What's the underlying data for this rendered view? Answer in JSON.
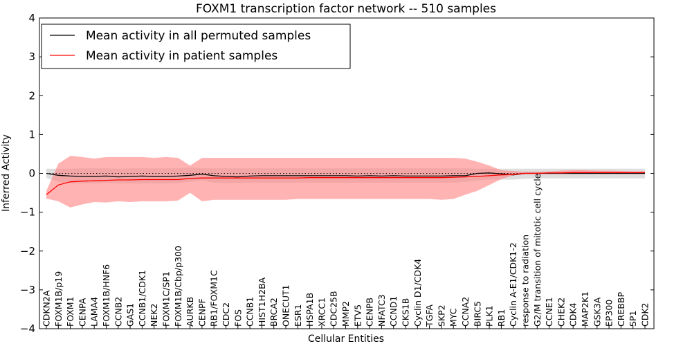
{
  "chart_data": {
    "type": "line",
    "title": "FOXM1 transcription factor network -- 510 samples",
    "xlabel": "Cellular Entities",
    "ylabel": "Inferred Activity",
    "ylim": [
      -4,
      4
    ],
    "yticks": [
      4,
      3,
      2,
      1,
      0,
      -1,
      -2,
      -3,
      -4
    ],
    "ytick_labels": [
      "4",
      "3",
      "2",
      "1",
      "0",
      "−1",
      "−2",
      "−3",
      "−4"
    ],
    "grid": false,
    "legend": "top-left",
    "categories": [
      "CDKN2A",
      "FOXM1B/p19",
      "FOXM1",
      "CENPA",
      "LAMA4",
      "FOXM1B/HNF6",
      "CCNB2",
      "GAS1",
      "CCNB1/CDK1",
      "NEK2",
      "FOXM1C/SP1",
      "FOXM1B/Cbp/p300",
      "AURKB",
      "CENPF",
      "RB1/FOXM1C",
      "CDC2",
      "FOS",
      "CCNB1",
      "HIST1H2BA",
      "BRCA2",
      "ONECUT1",
      "ESR1",
      "HSPA1B",
      "XRCC1",
      "CDC25B",
      "MMP2",
      "ETV5",
      "CENPB",
      "NFATC3",
      "CCND1",
      "CKS1B",
      "Cyclin D1/CDK4",
      "TGFA",
      "SKP2",
      "MYC",
      "CCNA2",
      "BIRC5",
      "PLK1",
      "RB1",
      "Cyclin A-E1/CDK1-2",
      "response to radiation",
      "G2/M transition of mitotic cell cycle",
      "CCNE1",
      "CHEK2",
      "CDK4",
      "MAP2K1",
      "GSK3A",
      "EP300",
      "CREBBP",
      "SP1",
      "CDK2"
    ],
    "reference_line": 0,
    "series": [
      {
        "name": "Mean activity in all permuted samples",
        "color": "#000000",
        "band_color": "#c8c8c8",
        "values": [
          0.0,
          -0.05,
          -0.07,
          -0.08,
          -0.08,
          -0.07,
          -0.09,
          -0.08,
          -0.07,
          -0.08,
          -0.08,
          -0.07,
          -0.05,
          -0.02,
          -0.06,
          -0.08,
          -0.09,
          -0.07,
          -0.06,
          -0.06,
          -0.06,
          -0.06,
          -0.06,
          -0.06,
          -0.06,
          -0.06,
          -0.07,
          -0.06,
          -0.07,
          -0.06,
          -0.07,
          -0.07,
          -0.07,
          -0.07,
          -0.06,
          -0.06,
          0.0,
          0.01,
          -0.01,
          -0.04,
          0.0,
          0.0,
          0.0,
          0.0,
          0.0,
          0.0,
          0.0,
          0.0,
          0.0,
          0.0,
          0.0
        ],
        "upper": [
          0.12,
          0.12,
          0.12,
          0.13,
          0.13,
          0.13,
          0.12,
          0.13,
          0.13,
          0.13,
          0.13,
          0.13,
          0.15,
          0.13,
          0.13,
          0.13,
          0.13,
          0.13,
          0.13,
          0.13,
          0.13,
          0.13,
          0.13,
          0.13,
          0.13,
          0.13,
          0.13,
          0.13,
          0.13,
          0.13,
          0.13,
          0.13,
          0.13,
          0.13,
          0.13,
          0.13,
          0.12,
          0.12,
          0.12,
          0.12,
          0.12,
          0.12,
          0.12,
          0.12,
          0.12,
          0.12,
          0.12,
          0.12,
          0.12,
          0.12,
          0.12
        ],
        "lower": [
          -0.12,
          -0.22,
          -0.25,
          -0.26,
          -0.26,
          -0.25,
          -0.26,
          -0.26,
          -0.26,
          -0.26,
          -0.26,
          -0.25,
          -0.22,
          -0.18,
          -0.24,
          -0.25,
          -0.25,
          -0.24,
          -0.24,
          -0.24,
          -0.24,
          -0.24,
          -0.24,
          -0.24,
          -0.24,
          -0.24,
          -0.24,
          -0.24,
          -0.24,
          -0.24,
          -0.24,
          -0.24,
          -0.24,
          -0.24,
          -0.24,
          -0.22,
          -0.18,
          -0.16,
          -0.16,
          -0.16,
          -0.14,
          -0.13,
          -0.13,
          -0.13,
          -0.13,
          -0.13,
          -0.13,
          -0.13,
          -0.13,
          -0.13,
          -0.13
        ]
      },
      {
        "name": "Mean activity in patient samples",
        "color": "#ff0000",
        "band_color": "#ff8080",
        "values": [
          -0.55,
          -0.3,
          -0.22,
          -0.2,
          -0.19,
          -0.18,
          -0.17,
          -0.17,
          -0.16,
          -0.16,
          -0.16,
          -0.16,
          -0.13,
          -0.12,
          -0.12,
          -0.12,
          -0.12,
          -0.12,
          -0.12,
          -0.12,
          -0.12,
          -0.12,
          -0.11,
          -0.11,
          -0.11,
          -0.11,
          -0.11,
          -0.11,
          -0.11,
          -0.11,
          -0.11,
          -0.11,
          -0.11,
          -0.11,
          -0.1,
          -0.09,
          -0.08,
          -0.06,
          -0.04,
          -0.03,
          0.0,
          0.0,
          0.01,
          0.01,
          0.02,
          0.02,
          0.02,
          0.02,
          0.02,
          0.02,
          0.02
        ],
        "upper": [
          -0.45,
          0.25,
          0.45,
          0.42,
          0.38,
          0.42,
          0.42,
          0.42,
          0.42,
          0.4,
          0.42,
          0.4,
          0.2,
          0.4,
          0.4,
          0.4,
          0.4,
          0.4,
          0.4,
          0.4,
          0.4,
          0.4,
          0.4,
          0.4,
          0.4,
          0.4,
          0.4,
          0.4,
          0.4,
          0.4,
          0.4,
          0.4,
          0.4,
          0.4,
          0.4,
          0.38,
          0.3,
          0.2,
          0.08,
          0.06,
          0.04,
          0.04,
          0.05,
          0.07,
          0.08,
          0.08,
          0.07,
          0.07,
          0.06,
          0.05,
          0.05
        ],
        "lower": [
          -0.65,
          -0.72,
          -0.88,
          -0.8,
          -0.74,
          -0.75,
          -0.72,
          -0.74,
          -0.72,
          -0.72,
          -0.72,
          -0.7,
          -0.5,
          -0.72,
          -0.68,
          -0.68,
          -0.68,
          -0.68,
          -0.68,
          -0.68,
          -0.68,
          -0.66,
          -0.66,
          -0.66,
          -0.66,
          -0.66,
          -0.66,
          -0.66,
          -0.66,
          -0.66,
          -0.66,
          -0.66,
          -0.66,
          -0.68,
          -0.66,
          -0.55,
          -0.45,
          -0.3,
          -0.15,
          -0.05,
          -0.02,
          -0.02,
          -0.02,
          -0.02,
          -0.02,
          -0.02,
          -0.02,
          -0.02,
          -0.02,
          -0.02,
          -0.02
        ]
      }
    ]
  }
}
